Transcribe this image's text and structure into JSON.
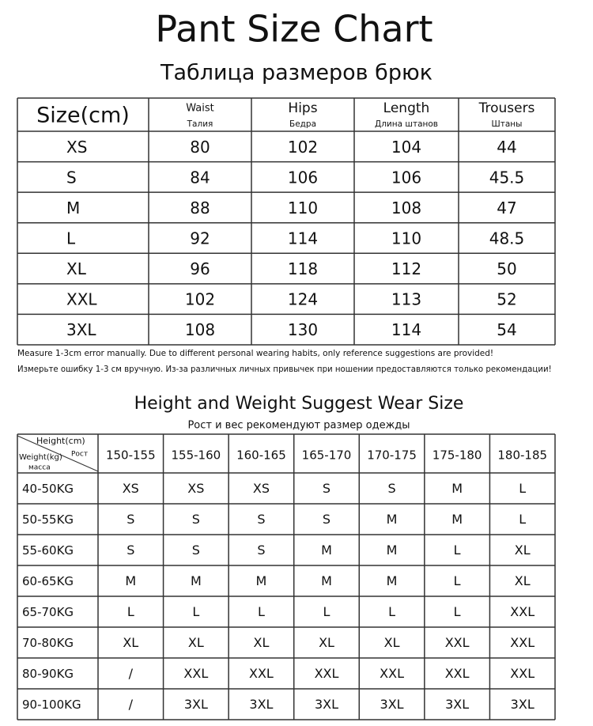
{
  "header": {
    "title": "Pant Size Chart",
    "subtitle": "Таблица размеров брюк"
  },
  "size_table": {
    "columns": [
      {
        "en": "Size(cm)"
      },
      {
        "en": "Waist",
        "ru": "Талия"
      },
      {
        "en": "Hips",
        "ru": "Бедра"
      },
      {
        "en": "Length",
        "ru": "Длина штанов"
      },
      {
        "en": "Trousers",
        "ru": "Штаны"
      }
    ],
    "rows": [
      [
        "XS",
        "80",
        "102",
        "104",
        "44"
      ],
      [
        "S",
        "84",
        "106",
        "106",
        "45.5"
      ],
      [
        "M",
        "88",
        "110",
        "108",
        "47"
      ],
      [
        "L",
        "92",
        "114",
        "110",
        "48.5"
      ],
      [
        "XL",
        "96",
        "118",
        "112",
        "50"
      ],
      [
        "XXL",
        "102",
        "124",
        "113",
        "52"
      ],
      [
        "3XL",
        "108",
        "130",
        "114",
        "54"
      ]
    ]
  },
  "notes": [
    "Measure 1-3cm error manually. Due to different personal wearing habits, only reference suggestions are provided!",
    "Измерьте ошибку 1-3 см вручную. Из-за различных личных привычек при ношении предоставляются только рекомендации!"
  ],
  "wear_section": {
    "title": "Height and Weight Suggest Wear Size",
    "subtitle": "Рост и вес рекомендуют размер одежды"
  },
  "wear_table": {
    "corner": {
      "height": "Height(cm)",
      "height_ru": "Рост",
      "weight": "Weight(kg)",
      "weight_ru": "масса"
    },
    "columns": [
      "150-155",
      "155-160",
      "160-165",
      "165-170",
      "170-175",
      "175-180",
      "180-185"
    ],
    "rows": [
      {
        "label": "40-50KG",
        "cells": [
          "XS",
          "XS",
          "XS",
          "S",
          "S",
          "M",
          "L"
        ]
      },
      {
        "label": "50-55KG",
        "cells": [
          "S",
          "S",
          "S",
          "S",
          "M",
          "M",
          "L"
        ]
      },
      {
        "label": "55-60KG",
        "cells": [
          "S",
          "S",
          "S",
          "M",
          "M",
          "L",
          "XL"
        ]
      },
      {
        "label": "60-65KG",
        "cells": [
          "M",
          "M",
          "M",
          "M",
          "M",
          "L",
          "XL"
        ]
      },
      {
        "label": "65-70KG",
        "cells": [
          "L",
          "L",
          "L",
          "L",
          "L",
          "L",
          "XXL"
        ]
      },
      {
        "label": "70-80KG",
        "cells": [
          "XL",
          "XL",
          "XL",
          "XL",
          "XL",
          "XXL",
          "XXL"
        ]
      },
      {
        "label": "80-90KG",
        "cells": [
          "/",
          "XXL",
          "XXL",
          "XXL",
          "XXL",
          "XXL",
          "XXL"
        ]
      },
      {
        "label": "90-100KG",
        "cells": [
          "/",
          "3XL",
          "3XL",
          "3XL",
          "3XL",
          "3XL",
          "3XL"
        ]
      }
    ]
  }
}
